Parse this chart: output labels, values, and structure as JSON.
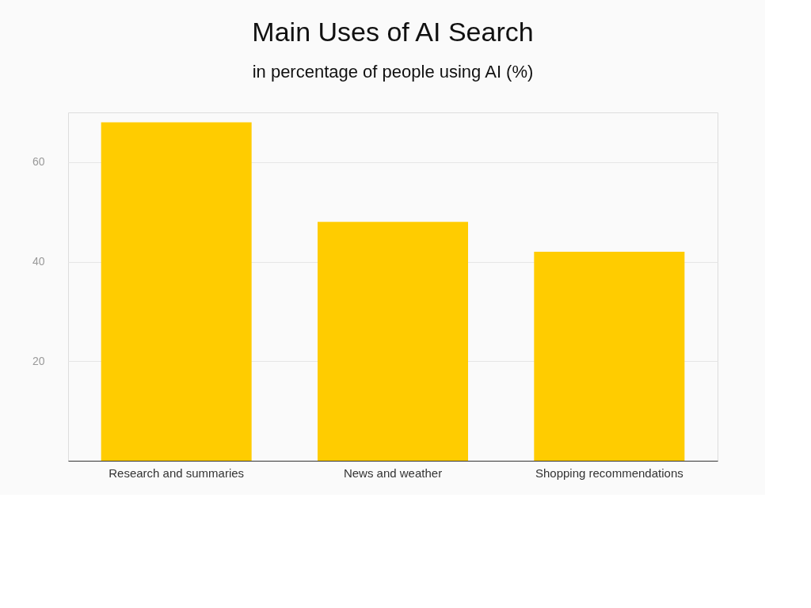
{
  "chart_data": {
    "type": "bar",
    "title": "Main Uses of AI Search",
    "subtitle": "in percentage of people using AI (%)",
    "categories": [
      "Research and summaries",
      "News and weather",
      "Shopping recommendations"
    ],
    "values": [
      68,
      48,
      42
    ],
    "color": "#ffcc00",
    "ylim": [
      0,
      70
    ],
    "yticks": [
      20,
      40,
      60
    ],
    "grid": "y"
  }
}
